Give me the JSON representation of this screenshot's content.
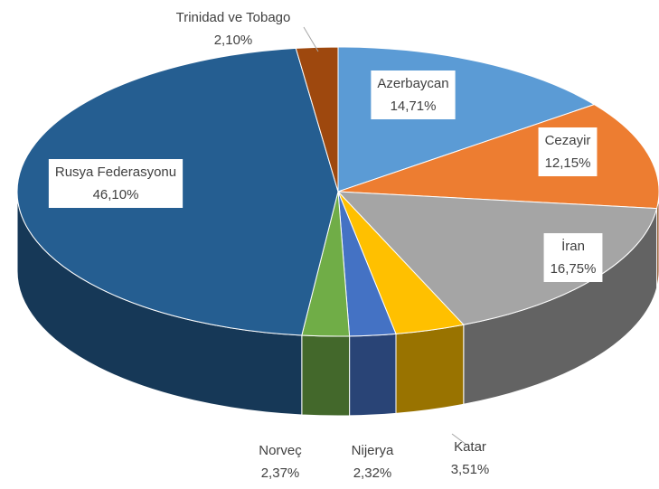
{
  "chart_data": {
    "type": "pie3d",
    "categories": [
      "Azerbaycan",
      "Cezayir",
      "İran",
      "Katar",
      "Nijerya",
      "Norveç",
      "Rusya Federasyonu",
      "Trinidad ve Tobago"
    ],
    "values": [
      14.71,
      12.15,
      16.75,
      3.51,
      2.32,
      2.37,
      46.1,
      2.1
    ],
    "value_labels": [
      "14,71%",
      "12,15%",
      "16,75%",
      "3,51%",
      "2,32%",
      "2,37%",
      "46,10%",
      "2,10%"
    ],
    "colors": [
      "#5b9bd5",
      "#ed7d31",
      "#a5a5a5",
      "#ffc000",
      "#4472c4",
      "#70ad47",
      "#255e91",
      "#9e480e"
    ]
  }
}
